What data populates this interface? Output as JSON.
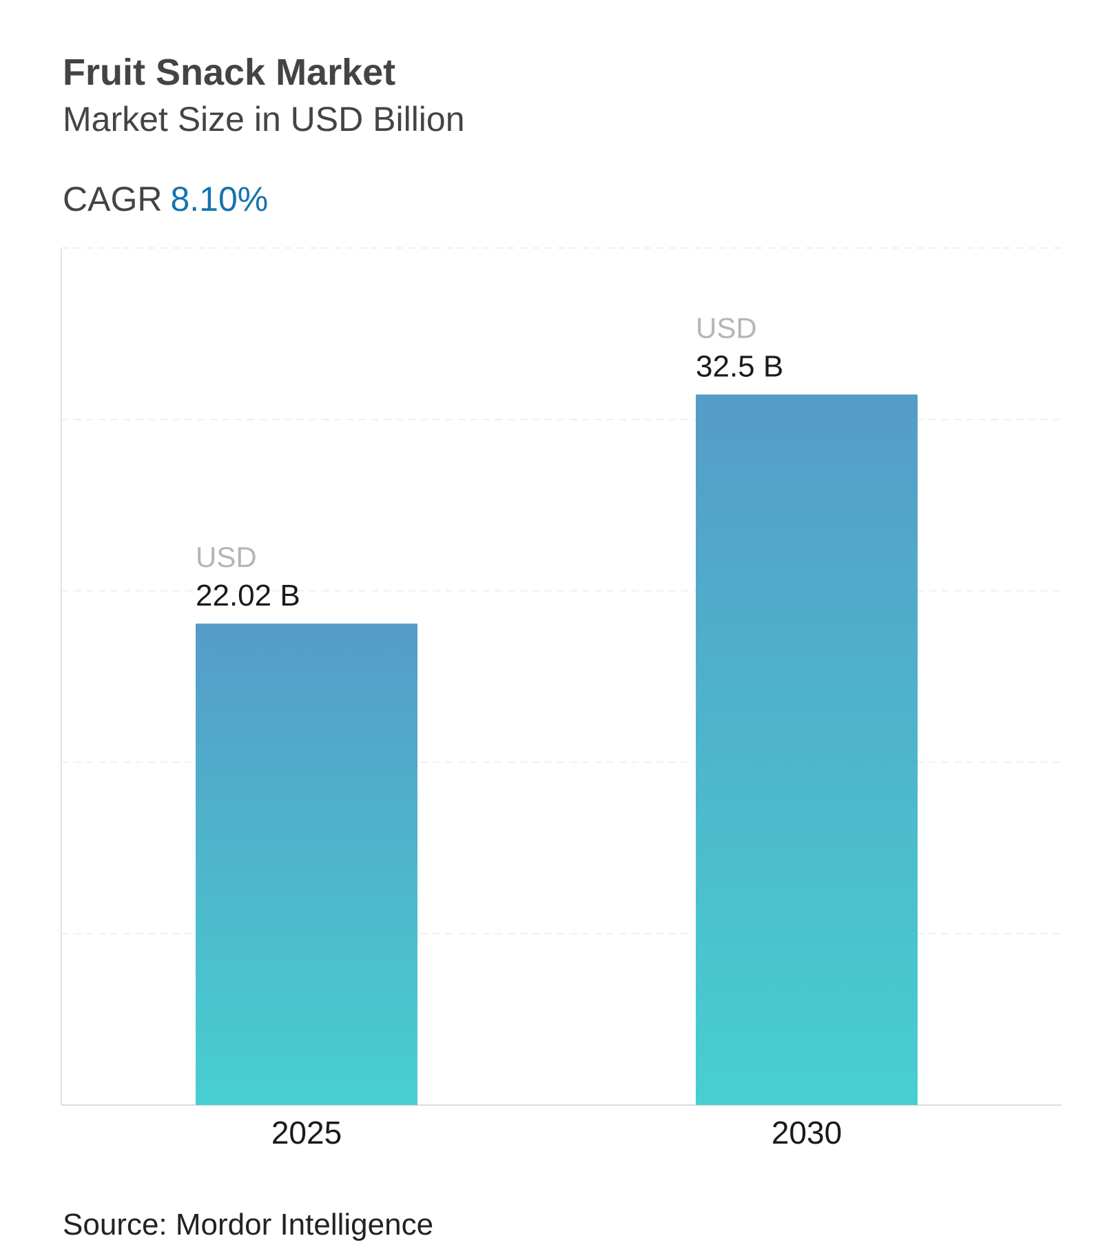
{
  "header": {
    "title": "Fruit Snack Market",
    "subtitle": "Market Size in USD Billion",
    "cagr_label": "CAGR",
    "cagr_value": "8.10%"
  },
  "footer": {
    "source": "Source: Mordor Intelligence"
  },
  "colors": {
    "bar_top": "#559cc8",
    "bar_bottom": "#47cfd0",
    "cagr": "#1673ae",
    "currency_label": "#b5b5b5"
  },
  "chart_data": {
    "type": "bar",
    "categories": [
      "2025",
      "2030"
    ],
    "values": [
      22.02,
      32.5
    ],
    "data_labels": [
      {
        "currency": "USD",
        "value": "22.02 B"
      },
      {
        "currency": "USD",
        "value": "32.5 B"
      }
    ],
    "title": "Fruit Snack Market",
    "subtitle": "Market Size in USD Billion",
    "ylim": [
      0,
      39.2
    ],
    "grid": true,
    "legend": "none"
  }
}
